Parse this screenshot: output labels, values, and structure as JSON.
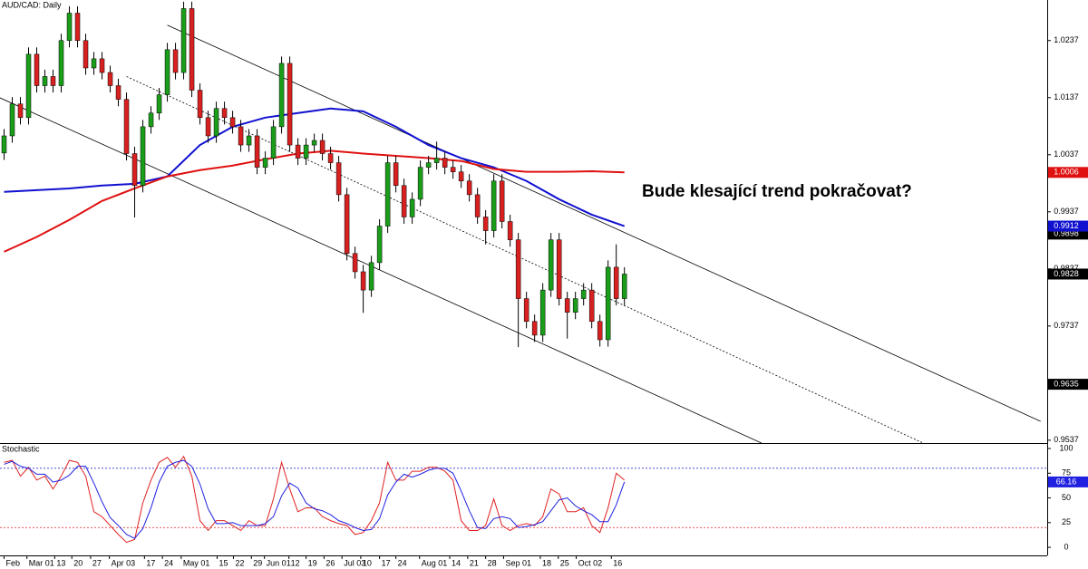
{
  "chart_data": [
    {
      "type": "candlestick",
      "title": "AUD/CAD: Daily",
      "annotation": "Bude klesající trend pokračovat?",
      "xlim": [
        -0.5,
        127.8
      ],
      "ylim": [
        0.9532,
        1.0308
      ],
      "yticks": [
        0.9537,
        0.9737,
        0.9837,
        0.9937,
        1.0037,
        1.0137,
        1.0237
      ],
      "xticks": [
        {
          "value": 0,
          "label": "Feb"
        },
        {
          "value": 2.8,
          "label": "Mar 01"
        },
        {
          "value": 6.2,
          "label": "13"
        },
        {
          "value": 8.3,
          "label": "20"
        },
        {
          "value": 10.6,
          "label": "27"
        },
        {
          "value": 12.9,
          "label": "Apr 03"
        },
        {
          "value": 17.2,
          "label": "17"
        },
        {
          "value": 19.4,
          "label": "24"
        },
        {
          "value": 21.7,
          "label": "May 01"
        },
        {
          "value": 26.1,
          "label": "15"
        },
        {
          "value": 28.1,
          "label": "22"
        },
        {
          "value": 30.3,
          "label": "29"
        },
        {
          "value": 31.9,
          "label": "Jun 01"
        },
        {
          "value": 34.9,
          "label": "12"
        },
        {
          "value": 37,
          "label": "19"
        },
        {
          "value": 39.2,
          "label": "26"
        },
        {
          "value": 41.4,
          "label": "Jul 03"
        },
        {
          "value": 43.7,
          "label": "10"
        },
        {
          "value": 46,
          "label": "17"
        },
        {
          "value": 48,
          "label": "24"
        },
        {
          "value": 50.9,
          "label": "Aug 01"
        },
        {
          "value": 54.6,
          "label": "14"
        },
        {
          "value": 56.8,
          "label": "21"
        },
        {
          "value": 59,
          "label": "28"
        },
        {
          "value": 61.2,
          "label": "Sep 01"
        },
        {
          "value": 65.7,
          "label": "18"
        },
        {
          "value": 67.9,
          "label": "25"
        },
        {
          "value": 70.1,
          "label": "Oct 02"
        },
        {
          "value": 74.4,
          "label": "16"
        }
      ],
      "open": [
        1.004,
        1.007,
        1.0126,
        1.0102,
        1.0213,
        1.0158,
        1.0174,
        1.0158,
        1.0237,
        1.0285,
        1.0237,
        1.0189,
        1.0205,
        1.0181,
        1.0158,
        1.0134,
        1.0039,
        0.9983,
        1.0086,
        1.011,
        1.0142,
        1.0221,
        1.0181,
        1.0293,
        1.015,
        1.0102,
        1.007,
        1.0118,
        1.0102,
        1.0086,
        1.0054,
        1.007,
        1.0015,
        1.0031,
        1.0086,
        1.0197,
        1.0054,
        1.0031,
        1.0054,
        1.0062,
        1.0039,
        1.0023,
        0.9967,
        0.9864,
        0.9832,
        0.98,
        0.9848,
        0.9912,
        1.0023,
        0.9983,
        0.9928,
        0.9959,
        1.0015,
        1.0023,
        1.0031,
        1.0015,
        1.0007,
        0.9991,
        0.9967,
        0.9928,
        0.9904,
        0.9991,
        0.992,
        0.9888,
        0.9785,
        0.9745,
        0.9721,
        0.98,
        0.9888,
        0.9785,
        0.9761,
        0.9785,
        0.98,
        0.9745,
        0.9713,
        0.984,
        0.9785
      ],
      "high": [
        1.0082,
        1.0138,
        1.0138,
        1.0225,
        1.0225,
        1.0186,
        1.0186,
        1.0249,
        1.0297,
        1.0297,
        1.0249,
        1.0217,
        1.0217,
        1.0193,
        1.017,
        1.0146,
        1.0051,
        1.0098,
        1.0122,
        1.0154,
        1.0233,
        1.0233,
        1.0305,
        1.0305,
        1.0162,
        1.0114,
        1.013,
        1.013,
        1.0114,
        1.0098,
        1.0082,
        1.0082,
        1.0043,
        1.0098,
        1.0209,
        1.0209,
        1.0066,
        1.0066,
        1.0074,
        1.0074,
        1.0051,
        1.0035,
        0.9979,
        0.9876,
        0.9844,
        0.986,
        0.9924,
        1.0035,
        1.0035,
        0.9995,
        0.9971,
        1.0027,
        1.0035,
        1.006,
        1.0043,
        1.0027,
        1.0019,
        1.0003,
        0.9979,
        0.994,
        1.0003,
        1.0003,
        0.9932,
        0.99,
        0.9797,
        0.9757,
        0.9812,
        0.99,
        0.99,
        0.9797,
        0.9797,
        0.9812,
        0.9812,
        0.9757,
        0.9852,
        0.988,
        0.984
      ],
      "low": [
        1.0028,
        1.0058,
        1.009,
        1.009,
        1.0146,
        1.0146,
        1.0146,
        1.0146,
        1.0225,
        1.0225,
        1.0177,
        1.0177,
        1.0169,
        1.0146,
        1.0122,
        1.0027,
        0.9927,
        0.9971,
        1.0074,
        1.0098,
        1.013,
        1.0169,
        1.0169,
        1.0138,
        1.009,
        1.0058,
        1.0058,
        1.009,
        1.0074,
        1.0042,
        1.0042,
        1.0003,
        1.0003,
        1.0019,
        1.0074,
        1.0042,
        1.0019,
        1.0019,
        1.0042,
        1.0027,
        1.0011,
        0.9955,
        0.9852,
        0.982,
        0.976,
        0.9788,
        0.9836,
        0.99,
        0.9971,
        0.9916,
        0.9916,
        0.9947,
        1.0003,
        1.0011,
        1.0003,
        0.9995,
        0.9979,
        0.9955,
        0.9916,
        0.988,
        0.9892,
        0.9908,
        0.9876,
        0.97,
        0.9733,
        0.9709,
        0.9709,
        0.9788,
        0.9773,
        0.9715,
        0.9749,
        0.9773,
        0.9733,
        0.9701,
        0.9701,
        0.9773,
        0.9773
      ],
      "close": [
        1.007,
        1.0126,
        1.0102,
        1.0213,
        1.0158,
        1.0174,
        1.0158,
        1.0237,
        1.0285,
        1.0237,
        1.0189,
        1.0205,
        1.0181,
        1.0158,
        1.0134,
        1.0039,
        0.9983,
        1.0086,
        1.011,
        1.0142,
        1.0221,
        1.0181,
        1.0293,
        1.015,
        1.0102,
        1.007,
        1.0118,
        1.0102,
        1.0086,
        1.0054,
        1.007,
        1.0015,
        1.0031,
        1.0086,
        1.0197,
        1.0054,
        1.0031,
        1.0054,
        1.0062,
        1.0039,
        1.0023,
        0.9967,
        0.9864,
        0.9832,
        0.98,
        0.9848,
        0.9912,
        1.0023,
        0.9983,
        0.9928,
        0.9959,
        1.0015,
        1.0023,
        1.0031,
        1.0015,
        1.0007,
        0.9991,
        0.9967,
        0.9928,
        0.9904,
        0.9991,
        0.992,
        0.9888,
        0.9785,
        0.9745,
        0.9721,
        0.98,
        0.9888,
        0.9785,
        0.9761,
        0.9785,
        0.98,
        0.9745,
        0.9713,
        0.984,
        0.9785,
        0.9828
      ],
      "up_color": "#1a9e1a",
      "down_color": "#d92020",
      "wick_color": "#000000",
      "last_price_tag": "#000000",
      "moving_averages": [
        {
          "color": "#1010d0",
          "tag": true,
          "x": [
            0,
            4,
            8,
            12,
            16,
            20,
            24,
            28,
            32,
            36,
            40,
            44,
            48,
            52,
            56,
            60,
            64,
            68,
            72,
            76
          ],
          "values": [
            0.9972,
            0.9975,
            0.9978,
            0.9983,
            0.9986,
            0.9999,
            1.0054,
            1.0086,
            1.0102,
            1.011,
            1.0118,
            1.0113,
            1.0086,
            1.0054,
            1.0031,
            1.0015,
            0.9991,
            0.9959,
            0.9932,
            0.9912
          ]
        },
        {
          "color": "#e01010",
          "tag": true,
          "x": [
            0,
            4,
            8,
            12,
            16,
            20,
            24,
            28,
            32,
            36,
            40,
            44,
            48,
            52,
            56,
            60,
            64,
            68,
            72,
            76
          ],
          "values": [
            0.9867,
            0.9893,
            0.9923,
            0.9956,
            0.9978,
            0.9999,
            1.001,
            1.0018,
            1.0029,
            1.0039,
            1.0044,
            1.0039,
            1.0035,
            1.0031,
            1.0026,
            1.0012,
            1.0007,
            1.0007,
            1.0008,
            1.0006
          ]
        }
      ],
      "trendlines": [
        {
          "x": [
            20,
            127
          ],
          "values": [
            1.0264,
            0.957
          ],
          "dashed": false
        },
        {
          "x": [
            15,
            112.6
          ],
          "values": [
            1.0174,
            0.9532
          ],
          "dashed": true
        },
        {
          "x": [
            -0.56,
            92.8
          ],
          "values": [
            1.0137,
            0.9532
          ],
          "dashed": false
        }
      ],
      "price_tags": [
        0.9898,
        0.9635
      ]
    },
    {
      "type": "line",
      "title": "Stochastic",
      "ylim": [
        -8.2,
        104.6
      ],
      "yticks": [
        0,
        25,
        50,
        75,
        100
      ],
      "levels": [
        {
          "value": 80,
          "color": "#3030d0"
        },
        {
          "value": 20,
          "color": "#e02020"
        }
      ],
      "series": [
        {
          "color": "#e02020",
          "values": [
            86,
            88,
            72,
            81,
            68,
            72,
            59,
            72,
            88,
            86,
            72,
            36,
            31,
            22,
            13,
            5,
            8,
            45,
            68,
            86,
            91,
            81,
            92,
            72,
            27,
            17,
            27,
            27,
            22,
            17,
            27,
            22,
            22,
            49,
            86,
            59,
            36,
            40,
            40,
            31,
            27,
            24,
            22,
            13,
            15,
            27,
            45,
            86,
            68,
            68,
            77,
            77,
            81,
            81,
            77,
            68,
            27,
            17,
            17,
            22,
            49,
            22,
            17,
            22,
            24,
            22,
            31,
            59,
            54,
            36,
            36,
            40,
            22,
            15,
            40,
            75,
            68
          ]
        },
        {
          "color": "#2020e0",
          "tag": true,
          "values": [
            84,
            87,
            82,
            80,
            74,
            74,
            66,
            68,
            73,
            82,
            82,
            65,
            46,
            30,
            22,
            13,
            9,
            19,
            40,
            66,
            82,
            86,
            88,
            82,
            64,
            39,
            24,
            24,
            25,
            22,
            22,
            22,
            24,
            31,
            52,
            65,
            60,
            45,
            39,
            37,
            33,
            27,
            24,
            20,
            17,
            18,
            29,
            53,
            66,
            74,
            71,
            74,
            78,
            80,
            80,
            75,
            57,
            37,
            20,
            19,
            29,
            31,
            29,
            20,
            21,
            23,
            26,
            37,
            48,
            50,
            42,
            37,
            33,
            26,
            26,
            43,
            66.16
          ]
        }
      ]
    }
  ]
}
